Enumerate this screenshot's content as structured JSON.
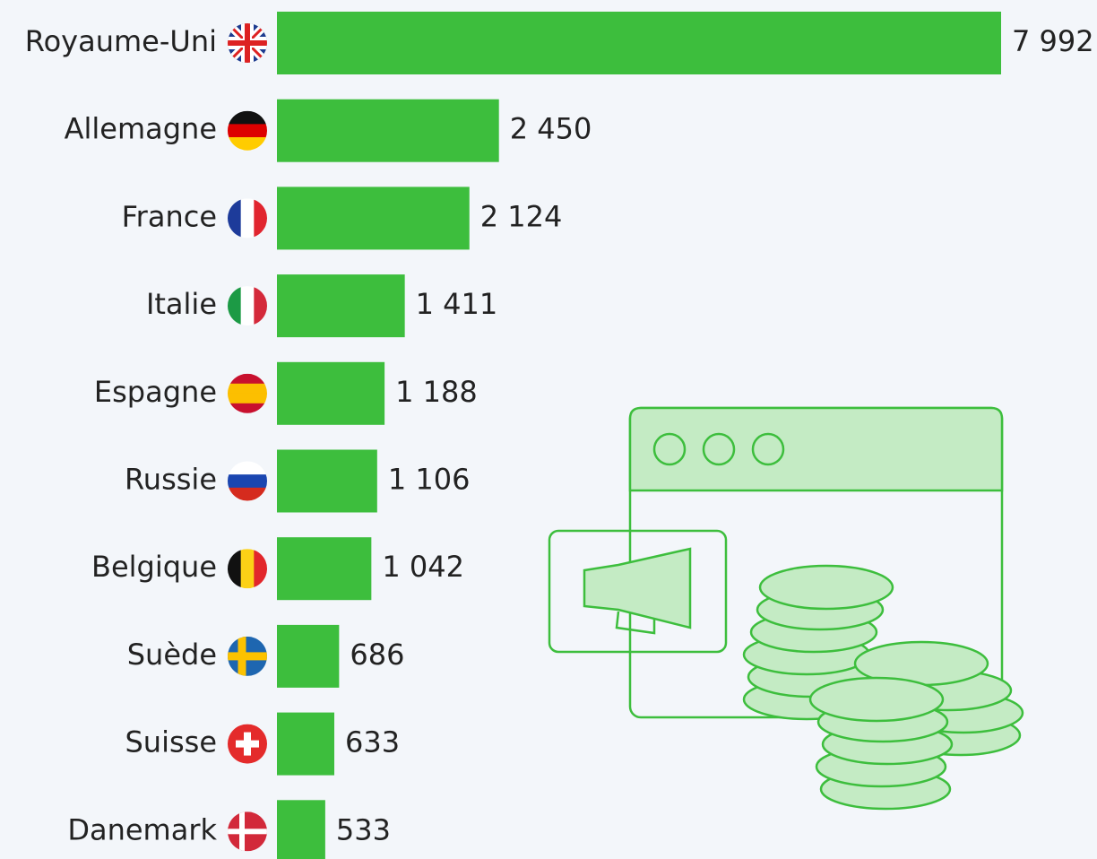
{
  "chart_data": {
    "type": "bar",
    "orientation": "horizontal",
    "categories": [
      "Royaume-Uni",
      "Allemagne",
      "France",
      "Italie",
      "Espagne",
      "Russie",
      "Belgique",
      "Suède",
      "Suisse",
      "Danemark"
    ],
    "values": [
      7992,
      2450,
      2124,
      1411,
      1188,
      1106,
      1042,
      686,
      633,
      533
    ],
    "value_labels": [
      "7 992",
      "2 450",
      "2 124",
      "1 411",
      "1 188",
      "1 106",
      "1 042",
      "686",
      "633",
      "533"
    ],
    "color": "#3dbe3d"
  }
}
